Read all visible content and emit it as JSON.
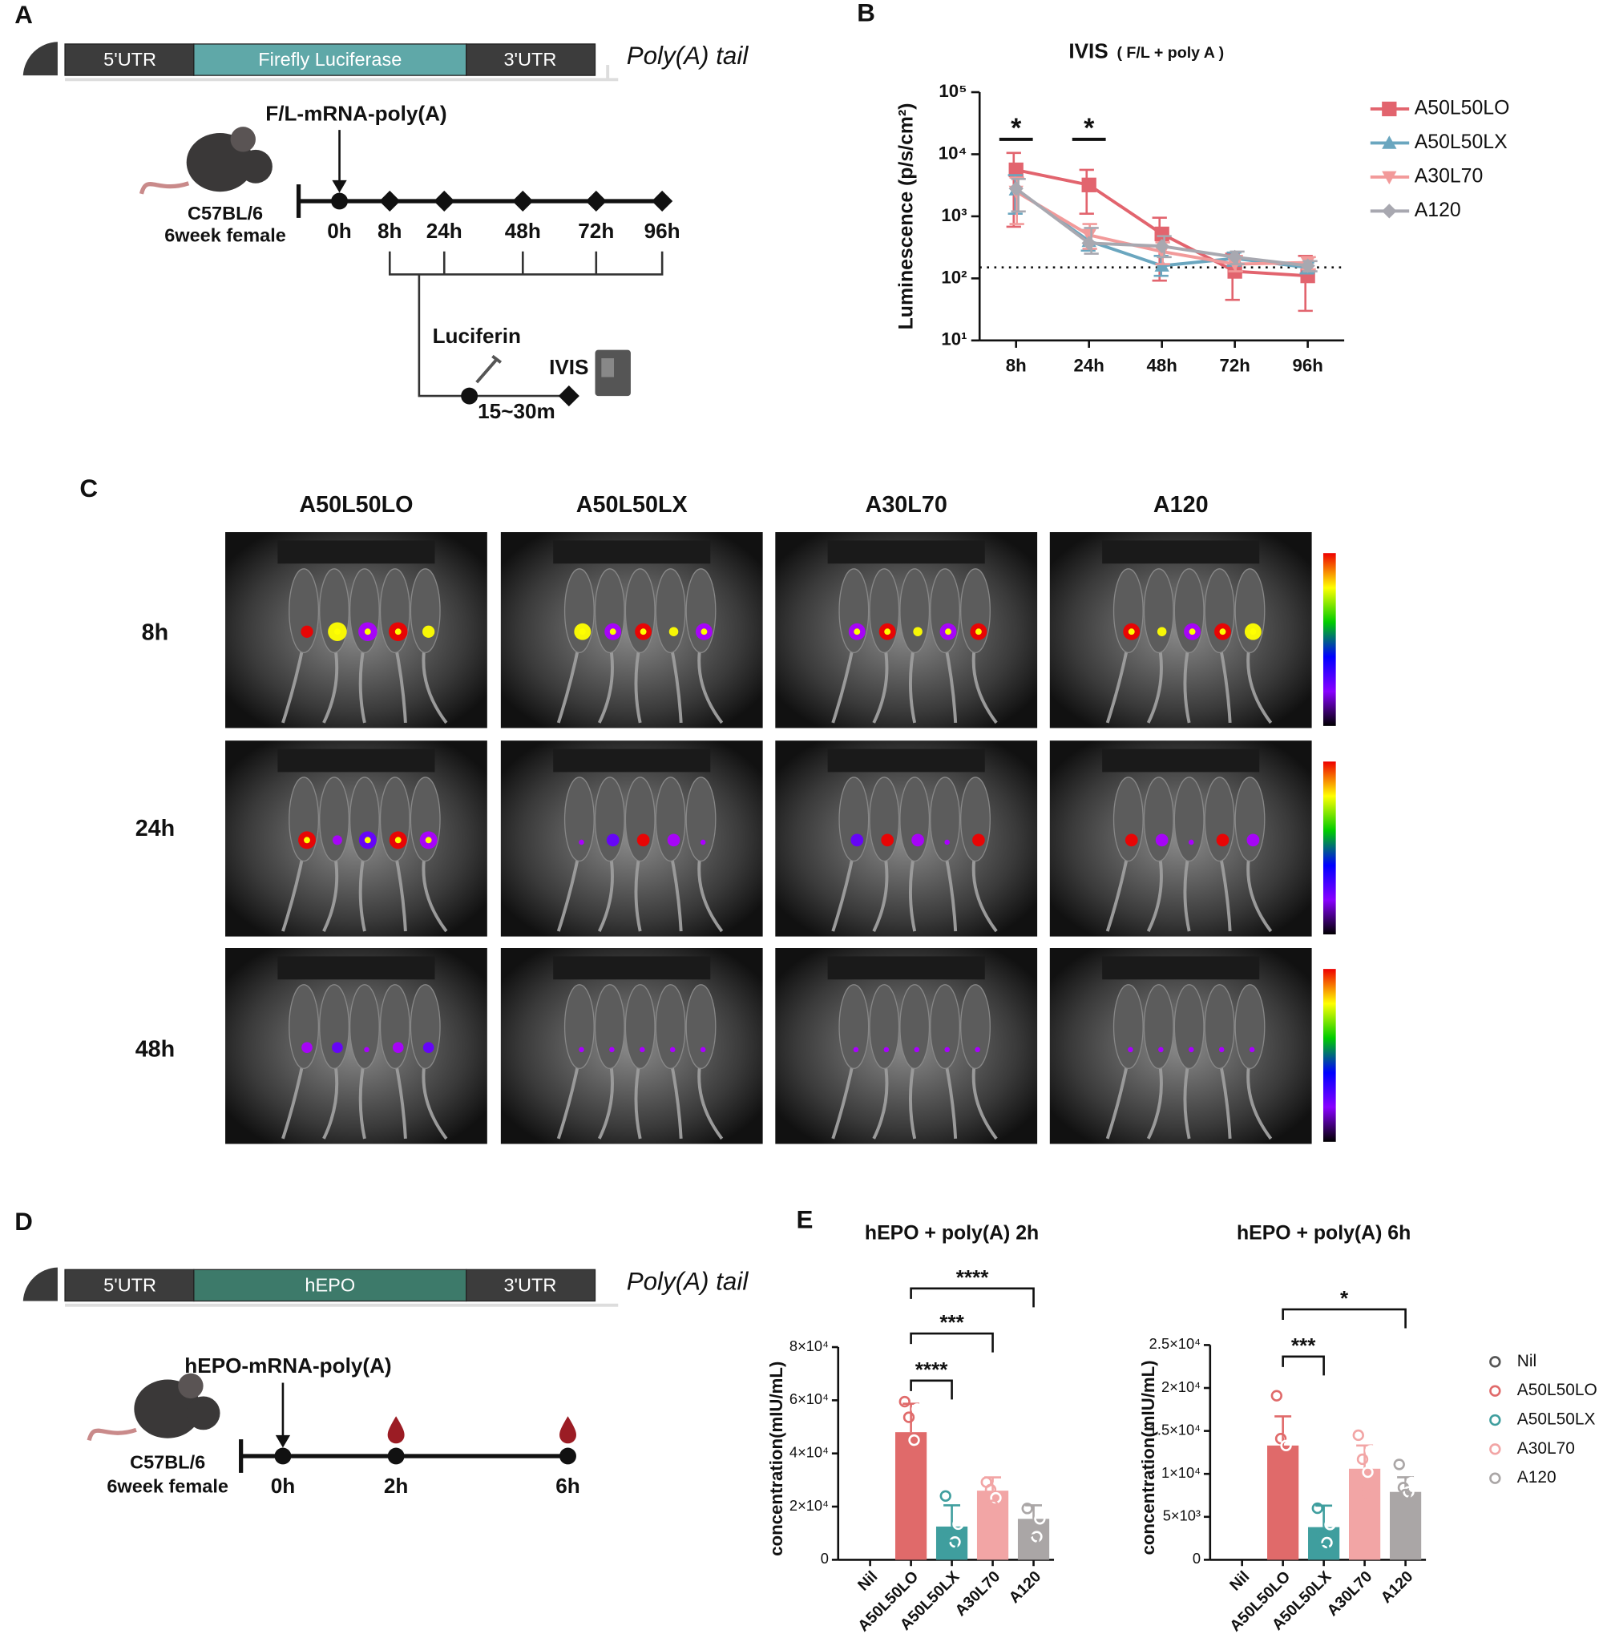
{
  "panel_labels": [
    "A",
    "B",
    "C",
    "D",
    "E"
  ],
  "panel_a": {
    "construct": [
      "5'UTR",
      "Firefly Luciferase",
      "3'UTR"
    ],
    "tail": "Poly(A) tail",
    "injection": "F/L-mRNA-poly(A)",
    "mouse": [
      "C57BL/6",
      "6week female"
    ],
    "timepoints": [
      "0h",
      "8h",
      "24h",
      "48h",
      "72h",
      "96h"
    ],
    "substrate": "Luciferin",
    "instrument": "IVIS",
    "interval": "15~30m"
  },
  "panel_c": {
    "columns": [
      "A50L50LO",
      "A50L50LX",
      "A30L70",
      "A120"
    ],
    "rows": [
      "8h",
      "24h",
      "48h"
    ]
  },
  "panel_d": {
    "construct": [
      "5'UTR",
      "hEPO",
      "3'UTR"
    ],
    "tail": "Poly(A) tail",
    "injection": "hEPO-mRNA-poly(A)",
    "mouse": [
      "C57BL/6",
      "6week female"
    ],
    "timepoints": [
      "0h",
      "2h",
      "6h"
    ]
  },
  "chart_data": [
    {
      "type": "line",
      "title": "IVIS",
      "subtitle": "( F/L + poly A )",
      "y_label": "Luminescence (p/s/cm²)",
      "log_y": true,
      "categories": [
        "8h",
        "24h",
        "48h",
        "72h",
        "96h"
      ],
      "ylim": [
        10,
        100000
      ],
      "yticks": [
        {
          "value": 10,
          "label": "10¹"
        },
        {
          "value": 100,
          "label": "10²"
        },
        {
          "value": 1000,
          "label": "10³"
        },
        {
          "value": 10000,
          "label": "10⁴"
        },
        {
          "value": 100000,
          "label": "10⁵"
        }
      ],
      "reference_line": 150,
      "annotations": [
        {
          "text": "*",
          "category": "8h"
        },
        {
          "text": "*",
          "category": "24h"
        }
      ],
      "series": [
        {
          "name": "A50L50LO",
          "color": "#e2646e",
          "marker": "square",
          "values": [
            5600,
            3200,
            520,
            130,
            110
          ],
          "error_low": [
            680,
            1100,
            92,
            45,
            30
          ],
          "error_high": [
            10500,
            5600,
            950,
            250,
            230
          ]
        },
        {
          "name": "A50L50LX",
          "color": "#6aa6bf",
          "marker": "triangle-up",
          "values": [
            2700,
            400,
            160,
            210,
            150
          ],
          "error_low": [
            1100,
            280,
            110,
            160,
            120
          ],
          "error_high": [
            4600,
            600,
            230,
            260,
            180
          ]
        },
        {
          "name": "A30L70",
          "color": "#f29a9a",
          "marker": "triangle-down",
          "values": [
            2500,
            500,
            270,
            170,
            180
          ],
          "error_low": [
            750,
            300,
            170,
            130,
            140
          ],
          "error_high": [
            4200,
            750,
            380,
            230,
            220
          ]
        },
        {
          "name": "A120",
          "color": "#a8a8b0",
          "marker": "diamond",
          "values": [
            2800,
            370,
            330,
            220,
            160
          ],
          "error_low": [
            1200,
            250,
            220,
            170,
            130
          ],
          "error_high": [
            4000,
            650,
            480,
            270,
            190
          ]
        }
      ]
    },
    {
      "type": "bar",
      "title": "hEPO + poly(A) 2h",
      "y_label": "concentration(mIU/mL)",
      "categories": [
        "Nil",
        "A50L50LO",
        "A50L50LX",
        "A30L70",
        "A120"
      ],
      "colors": [
        "#555555",
        "#e06a6a",
        "#3f9e9e",
        "#f2a5a5",
        "#aaa6a6"
      ],
      "values": [
        0,
        48000,
        12500,
        26000,
        15400
      ],
      "errors": [
        null,
        10700,
        8000,
        5000,
        5100
      ],
      "points": [
        [],
        [
          59500,
          56700,
          53600,
          45000,
          30300
        ],
        [
          24000,
          13400,
          8700,
          6700,
          5500
        ],
        [
          29200,
          28400,
          26400,
          23300,
          20500
        ],
        [
          19300,
          15400,
          12200,
          8700,
          7500
        ]
      ],
      "ylim": [
        0,
        80000
      ],
      "yticks": [
        0,
        {
          "value": 20000,
          "label": "2×10⁴"
        },
        {
          "value": 40000,
          "label": "4×10⁴"
        },
        {
          "value": 60000,
          "label": "6×10⁴"
        },
        {
          "value": 80000,
          "label": "8×10⁴"
        }
      ],
      "annotations": [
        {
          "text": "****",
          "from": "A50L50LO",
          "to": "A50L50LX"
        },
        {
          "text": "***",
          "from": "A50L50LO",
          "to": "A30L70"
        },
        {
          "text": "****",
          "from": "A50L50LO",
          "to": "A120"
        }
      ]
    },
    {
      "type": "bar",
      "title": "hEPO + poly(A) 6h",
      "y_label": "concentration(mIU/mL)",
      "categories": [
        "Nil",
        "A50L50LO",
        "A50L50LX",
        "A30L70",
        "A120"
      ],
      "colors": [
        "#555555",
        "#e06a6a",
        "#3f9e9e",
        "#f2a5a5",
        "#aaa6a6"
      ],
      "values": [
        0,
        13300,
        3800,
        10600,
        7900
      ],
      "errors": [
        null,
        3400,
        2500,
        2700,
        1700
      ],
      "points": [
        [],
        [
          19100,
          14500,
          14100,
          13300,
          10200
        ],
        [
          6000,
          4100,
          2900,
          2000,
          1300
        ],
        [
          14500,
          12700,
          11700,
          10200,
          7800
        ],
        [
          11100,
          9000,
          8400,
          7900,
          7600
        ]
      ],
      "ylim": [
        0,
        25000
      ],
      "yticks": [
        0,
        {
          "value": 5000,
          "label": "5×10³"
        },
        {
          "value": 10000,
          "label": "1×10⁴"
        },
        {
          "value": 15000,
          "label": "1.5×10⁴"
        },
        {
          "value": 20000,
          "label": "2×10⁴"
        },
        {
          "value": 25000,
          "label": "2.5×10⁴"
        }
      ],
      "annotations": [
        {
          "text": "***",
          "from": "A50L50LO",
          "to": "A50L50LX"
        },
        {
          "text": "*",
          "from": "A50L50LO",
          "to": "A120"
        }
      ],
      "legend": true
    }
  ]
}
